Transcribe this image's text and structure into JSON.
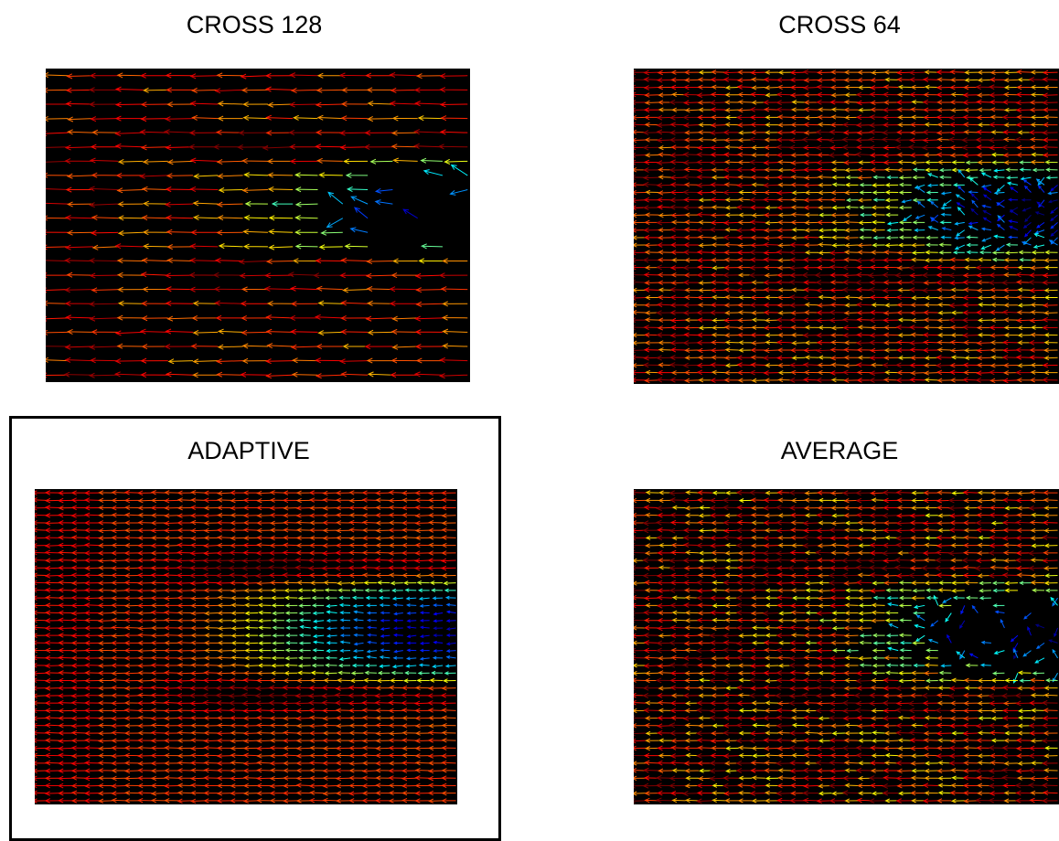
{
  "panels": [
    {
      "title": "CROSS 128"
    },
    {
      "title": "CROSS 64"
    },
    {
      "title": "ADAPTIVE"
    },
    {
      "title": "AVERAGE"
    }
  ]
}
